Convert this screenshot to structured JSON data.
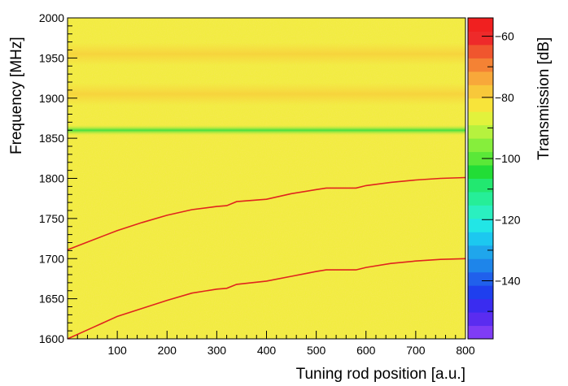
{
  "chart_data": {
    "type": "heatmap",
    "xlabel": "Tuning rod position [a.u.]",
    "ylabel": "Frequency [MHz]",
    "zlabel": "Transmission [dB]",
    "xlim": [
      0,
      800
    ],
    "ylim": [
      1600,
      2000
    ],
    "zlim": [
      -159,
      -54
    ],
    "x_ticks": [
      100,
      200,
      300,
      400,
      500,
      600,
      700,
      800
    ],
    "y_ticks": [
      1600,
      1650,
      1700,
      1750,
      1800,
      1850,
      1900,
      1950,
      2000
    ],
    "z_ticks": [
      -60,
      -80,
      -100,
      -120,
      -140
    ],
    "background_level_db": -80,
    "absorption_band": {
      "frequency": 1860,
      "level_db": -92
    },
    "faint_bands_mhz": [
      1905,
      1955
    ],
    "series": [
      {
        "x": [
          0,
          50,
          100,
          150,
          200,
          250,
          300,
          320,
          340,
          400,
          450,
          500,
          520,
          580,
          600,
          650,
          700,
          750,
          800
        ],
        "y": [
          1711,
          1723,
          1735,
          1745,
          1754,
          1761,
          1765,
          1766,
          1771,
          1774,
          1781,
          1786,
          1788,
          1788,
          1791,
          1795,
          1798,
          1800,
          1801
        ]
      },
      {
        "x": [
          0,
          50,
          100,
          150,
          200,
          250,
          300,
          320,
          340,
          400,
          450,
          500,
          520,
          580,
          600,
          650,
          700,
          750,
          800
        ],
        "y": [
          1600,
          1614,
          1628,
          1638,
          1648,
          1657,
          1662,
          1663,
          1668,
          1672,
          1678,
          1684,
          1686,
          1686,
          1689,
          1694,
          1697,
          1699,
          1700
        ]
      }
    ],
    "palette": [
      "#7f3cf5",
      "#5a2cf0",
      "#3a2cf0",
      "#1f3fee",
      "#2060ec",
      "#1e85ea",
      "#1fa6ec",
      "#1cc8f0",
      "#22e6e6",
      "#2af0c0",
      "#26ee98",
      "#22e870",
      "#22dd36",
      "#5ae838",
      "#86ee3c",
      "#b6f23e",
      "#e2f23c",
      "#f8e43a",
      "#f8c83a",
      "#f8a83a",
      "#f48234",
      "#f0562e",
      "#ee2a2a",
      "#f02020"
    ]
  }
}
